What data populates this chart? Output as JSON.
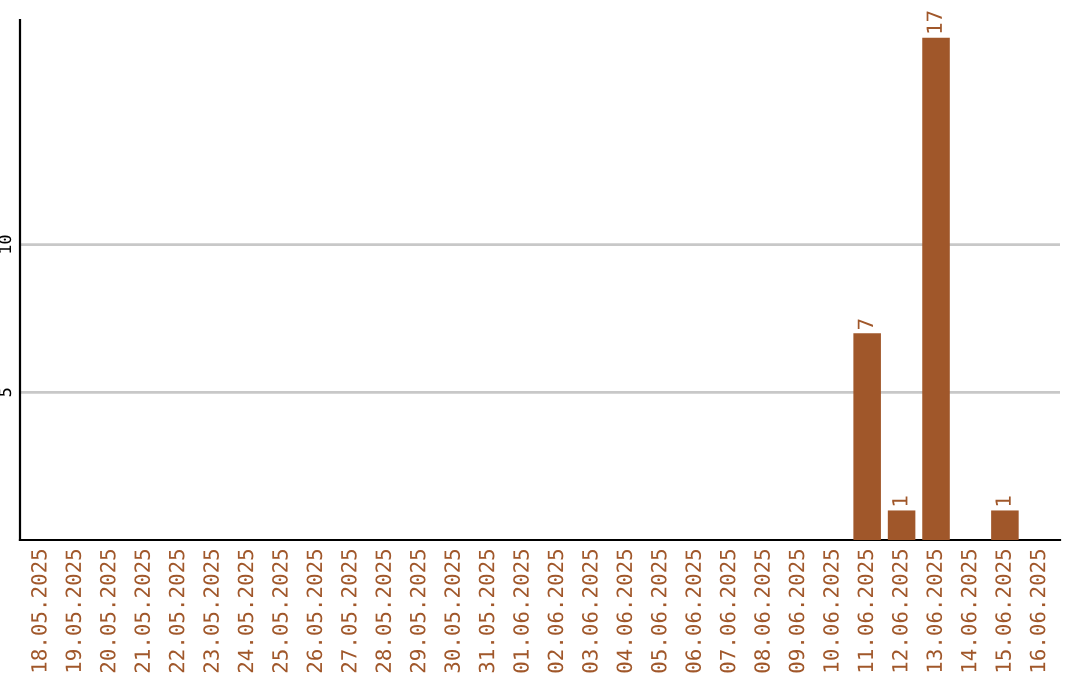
{
  "chart_data": {
    "type": "bar",
    "categories": [
      "18.05.2025",
      "19.05.2025",
      "20.05.2025",
      "21.05.2025",
      "22.05.2025",
      "23.05.2025",
      "24.05.2025",
      "25.05.2025",
      "26.05.2025",
      "27.05.2025",
      "28.05.2025",
      "29.05.2025",
      "30.05.2025",
      "31.05.2025",
      "01.06.2025",
      "02.06.2025",
      "03.06.2025",
      "04.06.2025",
      "05.06.2025",
      "06.06.2025",
      "07.06.2025",
      "08.06.2025",
      "09.06.2025",
      "10.06.2025",
      "11.06.2025",
      "12.06.2025",
      "13.06.2025",
      "14.06.2025",
      "15.06.2025",
      "16.06.2025"
    ],
    "values": [
      0,
      0,
      0,
      0,
      0,
      0,
      0,
      0,
      0,
      0,
      0,
      0,
      0,
      0,
      0,
      0,
      0,
      0,
      0,
      0,
      0,
      0,
      0,
      0,
      7,
      1,
      17,
      0,
      1,
      0
    ],
    "value_labels": [
      null,
      null,
      null,
      null,
      null,
      null,
      null,
      null,
      null,
      null,
      null,
      null,
      null,
      null,
      null,
      null,
      null,
      null,
      null,
      null,
      null,
      null,
      null,
      null,
      "7",
      "1",
      "17",
      null,
      "1",
      null
    ],
    "color": "#a0572a",
    "ylim": [
      0,
      17.6
    ],
    "yticks": [
      5,
      10
    ],
    "grid": "y"
  }
}
